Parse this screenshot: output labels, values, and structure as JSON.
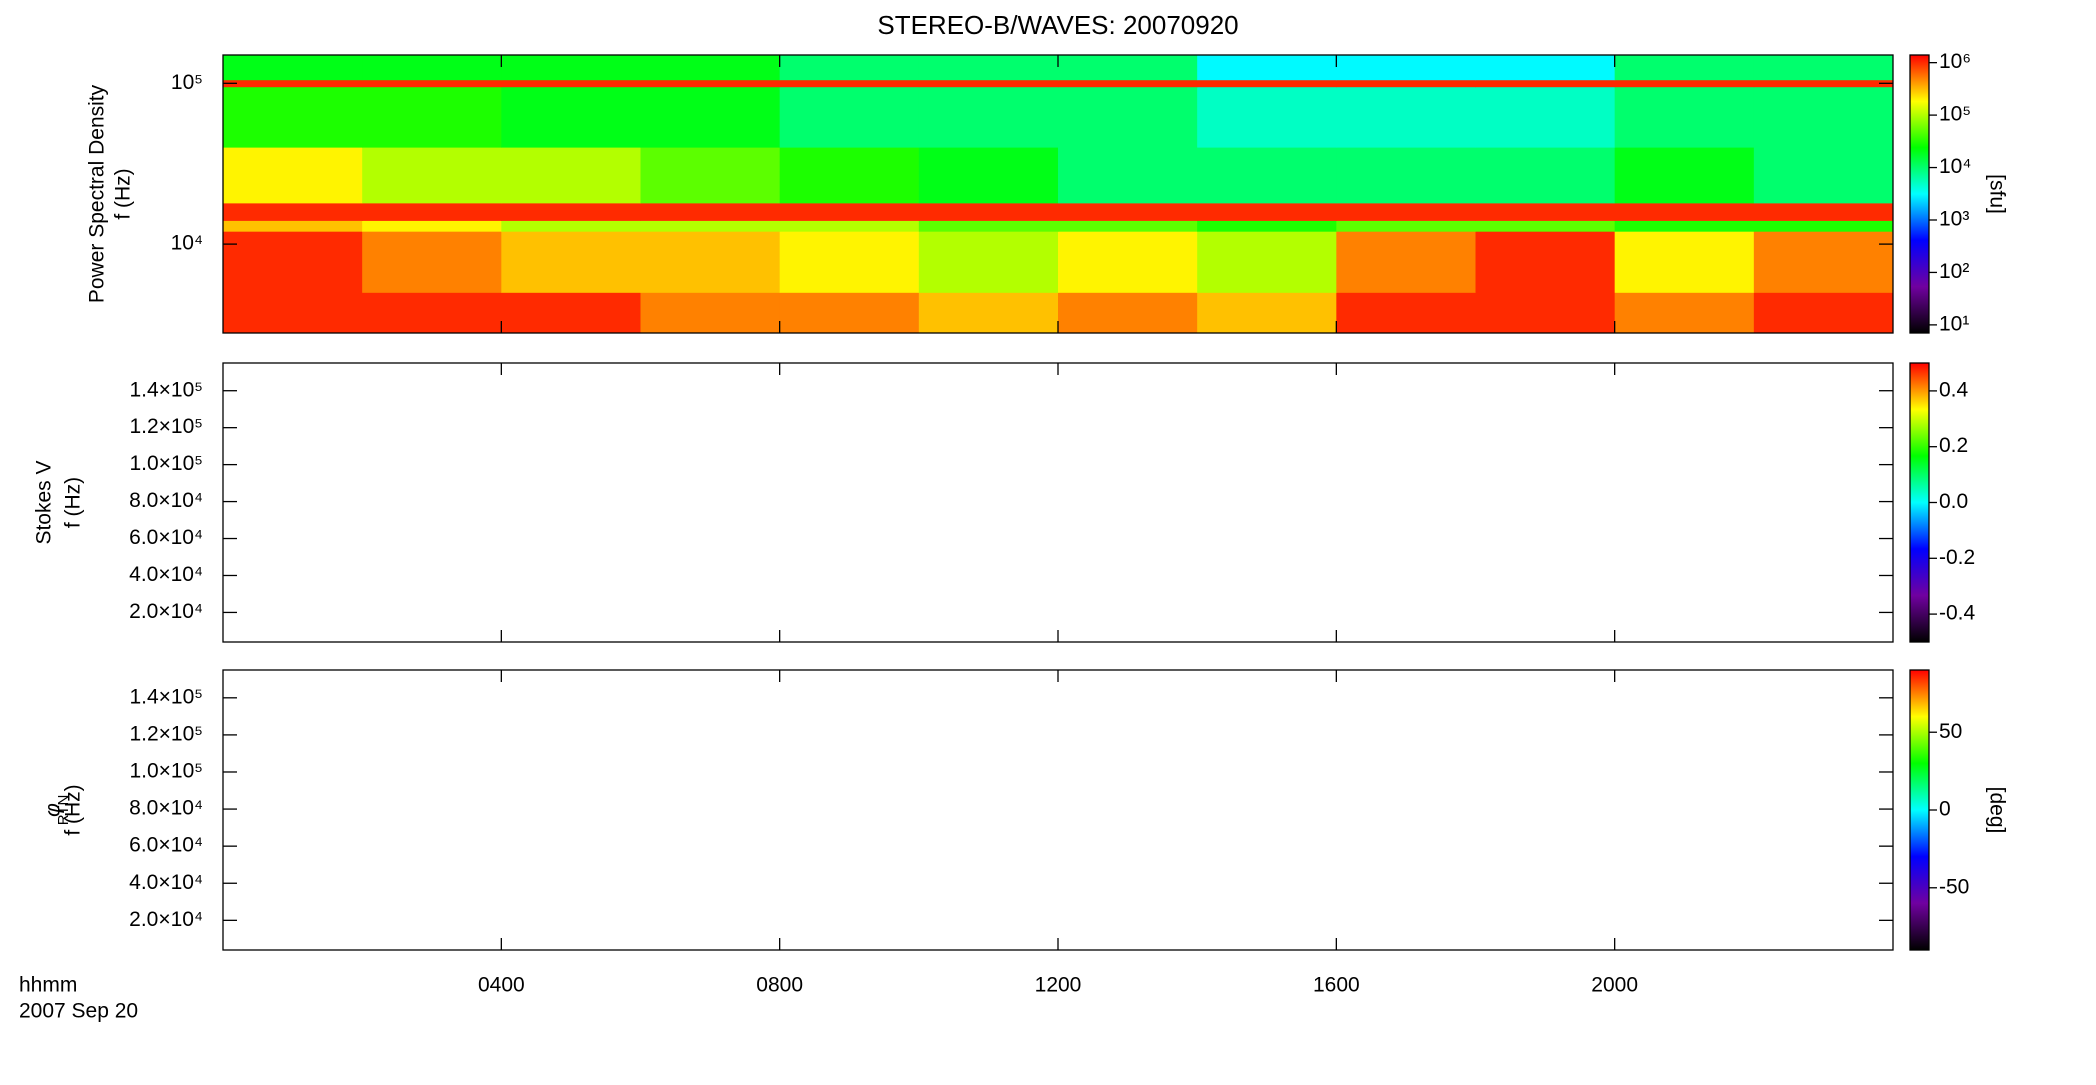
{
  "chart_data": [
    {
      "type": "spectrogram",
      "title": "STEREO-B/WAVES: 20070920",
      "ylabel": [
        "Power Spectral Density",
        "f (Hz)"
      ],
      "ylog": true,
      "ylim": [
        2800,
        150000
      ],
      "yticks": [
        {
          "value": 10000,
          "label": "10⁴"
        },
        {
          "value": 100000,
          "label": "10⁵"
        }
      ],
      "xlim": [
        0,
        24
      ],
      "x_edges": [
        0,
        2,
        4,
        6,
        8,
        10,
        12,
        14,
        16,
        18,
        20,
        22,
        24
      ],
      "y_edges": [
        2800,
        5000,
        12000,
        14000,
        18000,
        40000,
        95000,
        105000,
        150000
      ],
      "values": [
        [
          1000000,
          1000000,
          1000000,
          500000,
          500000,
          300000,
          500000,
          300000,
          1000000,
          1000000,
          500000,
          1000000
        ],
        [
          1000000,
          500000,
          300000,
          300000,
          200000,
          100000,
          200000,
          100000,
          500000,
          1000000,
          200000,
          500000
        ],
        [
          300000,
          200000,
          100000,
          100000,
          100000,
          50000,
          50000,
          30000,
          50000,
          50000,
          30000,
          30000
        ],
        [
          1000000,
          1000000,
          1000000,
          1000000,
          1000000,
          1000000,
          1000000,
          1000000,
          1000000,
          1000000,
          1000000,
          1000000
        ],
        [
          200000,
          100000,
          100000,
          50000,
          30000,
          20000,
          10000,
          10000,
          10000,
          10000,
          20000,
          10000
        ],
        [
          30000,
          30000,
          20000,
          20000,
          10000,
          10000,
          10000,
          5000,
          5000,
          5000,
          10000,
          10000
        ],
        [
          1000000,
          1000000,
          1000000,
          1000000,
          1000000,
          1000000,
          1000000,
          1000000,
          1000000,
          1000000,
          1000000,
          1000000
        ],
        [
          20000,
          20000,
          20000,
          20000,
          10000,
          10000,
          10000,
          3000,
          3000,
          3000,
          10000,
          10000
        ]
      ],
      "clog": true,
      "clim": [
        7,
        1400000
      ],
      "cticks": [
        {
          "value": 10,
          "label": "10¹"
        },
        {
          "value": 100,
          "label": "10²"
        },
        {
          "value": 1000,
          "label": "10³"
        },
        {
          "value": 10000,
          "label": "10⁴"
        },
        {
          "value": 100000,
          "label": "10⁵"
        },
        {
          "value": 1000000,
          "label": "10⁶"
        }
      ],
      "cunit": "[sfu]",
      "colormap": [
        "#000000",
        "#7000a0",
        "#0000ff",
        "#00ffff",
        "#00ff00",
        "#ffff00",
        "#ff0000"
      ]
    },
    {
      "type": "spectrogram",
      "ylabel": [
        "Stokes V",
        "f (Hz)"
      ],
      "ylim": [
        4000,
        155000
      ],
      "yticks": [
        {
          "value": 20000,
          "label": "2.0×10⁴"
        },
        {
          "value": 40000,
          "label": "4.0×10⁴"
        },
        {
          "value": 60000,
          "label": "6.0×10⁴"
        },
        {
          "value": 80000,
          "label": "8.0×10⁴"
        },
        {
          "value": 100000,
          "label": "1.0×10⁵"
        },
        {
          "value": 120000,
          "label": "1.2×10⁵"
        },
        {
          "value": 140000,
          "label": "1.4×10⁵"
        }
      ],
      "xlim": [
        0,
        24
      ],
      "clim": [
        -0.5,
        0.5
      ],
      "cticks": [
        -0.4,
        -0.2,
        {
          "value": 0,
          "label": "0.0"
        },
        0.2,
        0.4
      ],
      "colormap": [
        "#000000",
        "#7000a0",
        "#0000ff",
        "#00ffff",
        "#00ff00",
        "#ffff00",
        "#ff0000"
      ]
    },
    {
      "type": "spectrogram",
      "ylabel": [
        "φ",
        "f (Hz)"
      ],
      "ylabel_subscript": "RTN",
      "ylim": [
        4000,
        155000
      ],
      "yticks": [
        {
          "value": 20000,
          "label": "2.0×10⁴"
        },
        {
          "value": 40000,
          "label": "4.0×10⁴"
        },
        {
          "value": 60000,
          "label": "6.0×10⁴"
        },
        {
          "value": 80000,
          "label": "8.0×10⁴"
        },
        {
          "value": 100000,
          "label": "1.0×10⁵"
        },
        {
          "value": 120000,
          "label": "1.2×10⁵"
        },
        {
          "value": 140000,
          "label": "1.4×10⁵"
        }
      ],
      "xlim": [
        0,
        24
      ],
      "xticks": [
        {
          "value": 4,
          "label": "0400"
        },
        {
          "value": 8,
          "label": "0800"
        },
        {
          "value": 12,
          "label": "1200"
        },
        {
          "value": 16,
          "label": "1600"
        },
        {
          "value": 20,
          "label": "2000"
        }
      ],
      "xlabel": "hhmm",
      "date_label": "2007 Sep 20",
      "clim": [
        -90,
        90
      ],
      "cticks": [
        -50,
        0,
        50
      ],
      "cunit": "[deg]",
      "colormap": [
        "#000000",
        "#7000a0",
        "#0000ff",
        "#00ffff",
        "#00ff00",
        "#ffff00",
        "#ff0000"
      ]
    }
  ]
}
